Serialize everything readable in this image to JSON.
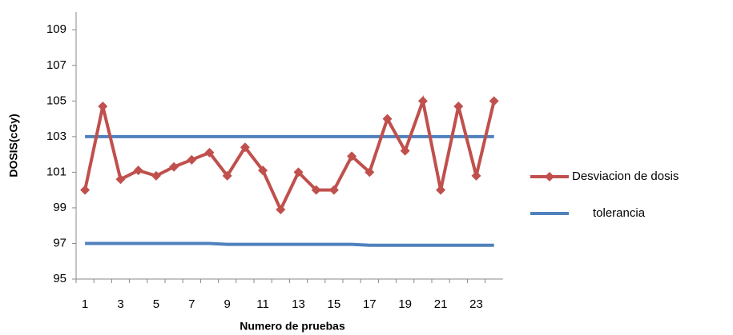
{
  "chart_data": {
    "type": "line",
    "x_label": "Numero de pruebas",
    "y_label": "DOSIS(cGy)",
    "categories": [
      "1",
      null,
      "3",
      null,
      "5",
      null,
      "7",
      null,
      "9",
      null,
      "11",
      null,
      "13",
      null,
      "15",
      null,
      "17",
      null,
      "19",
      null,
      "21",
      null,
      "23",
      null
    ],
    "series": [
      {
        "name": "Desviacion de dosis",
        "color": "#c0504d",
        "marker": "diamond",
        "values": [
          100.0,
          104.7,
          100.6,
          101.1,
          100.8,
          101.3,
          101.7,
          102.1,
          100.8,
          102.4,
          101.1,
          98.9,
          101.0,
          100.0,
          100.0,
          101.9,
          101.0,
          104.0,
          102.2,
          105.0,
          100.0,
          104.7,
          100.8,
          105.0
        ]
      },
      {
        "name": "tolerancia",
        "color": "#4f81bd",
        "values": [
          103,
          103,
          103,
          103,
          103,
          103,
          103,
          103,
          103,
          103,
          103,
          103,
          103,
          103,
          103,
          103,
          103,
          103,
          103,
          103,
          103,
          103,
          103,
          103
        ]
      },
      {
        "color": "#4f81bd",
        "values": [
          97,
          97,
          97,
          97,
          97,
          97,
          97,
          97,
          96.95,
          96.95,
          96.95,
          96.95,
          96.95,
          96.95,
          96.95,
          96.95,
          96.9,
          96.9,
          96.9,
          96.9,
          96.9,
          96.9,
          96.9,
          96.9
        ]
      }
    ],
    "ylim": [
      95,
      110
    ],
    "yticks": [
      95,
      97,
      99,
      101,
      103,
      105,
      107,
      109
    ],
    "legend": "right"
  }
}
